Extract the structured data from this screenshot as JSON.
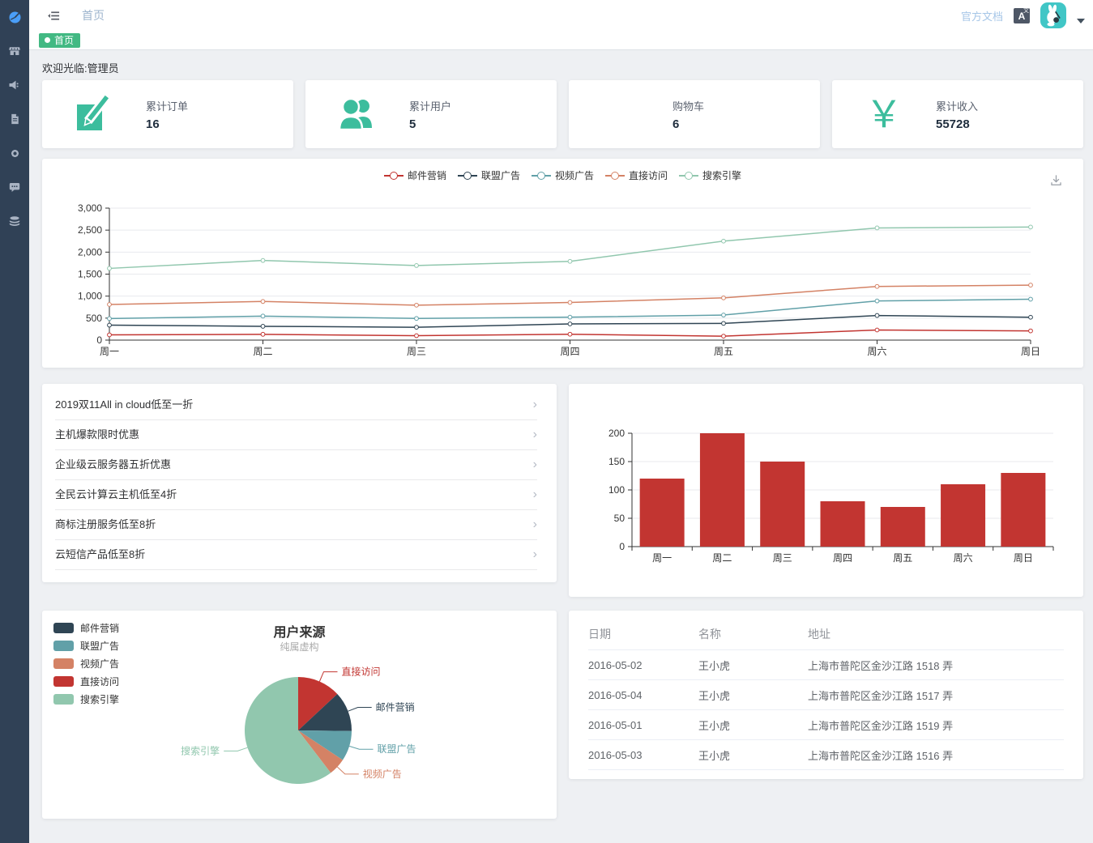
{
  "app": {
    "header": {
      "breadcrumb": "首页",
      "docs_link": "官方文档",
      "lang_badge": "A",
      "lang_badge_sub": "文"
    },
    "tagbar": {
      "active_tag": "首页"
    },
    "welcome": "欢迎光临:管理员",
    "sidebar_icons": [
      "dashboard-icon",
      "shop-icon",
      "speaker-icon",
      "document-icon",
      "gear-icon",
      "comment-icon",
      "database-icon"
    ]
  },
  "colors": {
    "sidebar_bg": "#304156",
    "sidebar_active_icon": "#4a9ef8",
    "sidebar_icon": "#a9b3c3",
    "tag_green": "#42b983",
    "stat_icon_green": "#3cbd9d",
    "avatar_teal": "#41c6c6",
    "bar_red": "#c23531",
    "palette": [
      "#c23531",
      "#2f4554",
      "#61a0a8",
      "#d48265",
      "#91c7ae"
    ]
  },
  "stats": [
    {
      "label": "累计订单",
      "value": "16",
      "icon": "edit-icon"
    },
    {
      "label": "累计用户",
      "value": "5",
      "icon": "users-icon"
    },
    {
      "label": "购物车",
      "value": "6",
      "icon": "cart-icon"
    },
    {
      "label": "累计收入",
      "value": "55728",
      "icon": "yen-icon"
    }
  ],
  "promotions": [
    "2019双11All in cloud低至一折",
    "主机爆款限时优惠",
    "企业级云服务器五折优惠",
    "全民云计算云主机低至4折",
    "商标注册服务低至8折",
    "云短信产品低至8折"
  ],
  "orders_table": {
    "columns": [
      "日期",
      "名称",
      "地址"
    ],
    "rows": [
      [
        "2016-05-02",
        "王小虎",
        "上海市普陀区金沙江路 1518 弄"
      ],
      [
        "2016-05-04",
        "王小虎",
        "上海市普陀区金沙江路 1517 弄"
      ],
      [
        "2016-05-01",
        "王小虎",
        "上海市普陀区金沙江路 1519 弄"
      ],
      [
        "2016-05-03",
        "王小虎",
        "上海市普陀区金沙江路 1516 弄"
      ]
    ]
  },
  "chart_data": [
    {
      "id": "weekly-traffic-line",
      "type": "line",
      "stacked": true,
      "x": [
        "周一",
        "周二",
        "周三",
        "周四",
        "周五",
        "周六",
        "周日"
      ],
      "series": [
        {
          "name": "邮件营销",
          "values": [
            120,
            132,
            101,
            134,
            90,
            230,
            210
          ],
          "color": "#c23531"
        },
        {
          "name": "联盟广告",
          "values": [
            220,
            182,
            191,
            234,
            290,
            330,
            310
          ],
          "color": "#2f4554"
        },
        {
          "name": "视频广告",
          "values": [
            150,
            232,
            201,
            154,
            190,
            330,
            410
          ],
          "color": "#61a0a8"
        },
        {
          "name": "直接访问",
          "values": [
            320,
            332,
            301,
            334,
            390,
            330,
            320
          ],
          "color": "#d48265"
        },
        {
          "name": "搜索引擎",
          "values": [
            820,
            932,
            901,
            934,
            1290,
            1330,
            1320
          ],
          "color": "#91c7ae"
        }
      ],
      "ylim": [
        0,
        3000
      ],
      "yticks": [
        0,
        500,
        1000,
        1500,
        2000,
        2500,
        3000
      ],
      "legend_position": "top",
      "grid": true
    },
    {
      "id": "weekly-bar",
      "type": "bar",
      "categories": [
        "周一",
        "周二",
        "周三",
        "周四",
        "周五",
        "周六",
        "周日"
      ],
      "values": [
        120,
        200,
        150,
        80,
        70,
        110,
        130
      ],
      "color": "#c23531",
      "ylim": [
        0,
        200
      ],
      "yticks": [
        0,
        50,
        100,
        150,
        200
      ],
      "grid": true
    },
    {
      "id": "user-source-pie",
      "type": "pie",
      "title": "用户来源",
      "subtitle": "纯属虚构",
      "legend_position": "left",
      "slices": [
        {
          "name": "直接访问",
          "value": 335,
          "color": "#c23531"
        },
        {
          "name": "邮件营销",
          "value": 310,
          "color": "#2f4554"
        },
        {
          "name": "联盟广告",
          "value": 234,
          "color": "#61a0a8"
        },
        {
          "name": "视频广告",
          "value": 135,
          "color": "#d48265"
        },
        {
          "name": "搜索引擎",
          "value": 1548,
          "color": "#91c7ae"
        }
      ],
      "legend_order": [
        "邮件营销",
        "联盟广告",
        "视频广告",
        "直接访问",
        "搜索引擎"
      ]
    }
  ]
}
